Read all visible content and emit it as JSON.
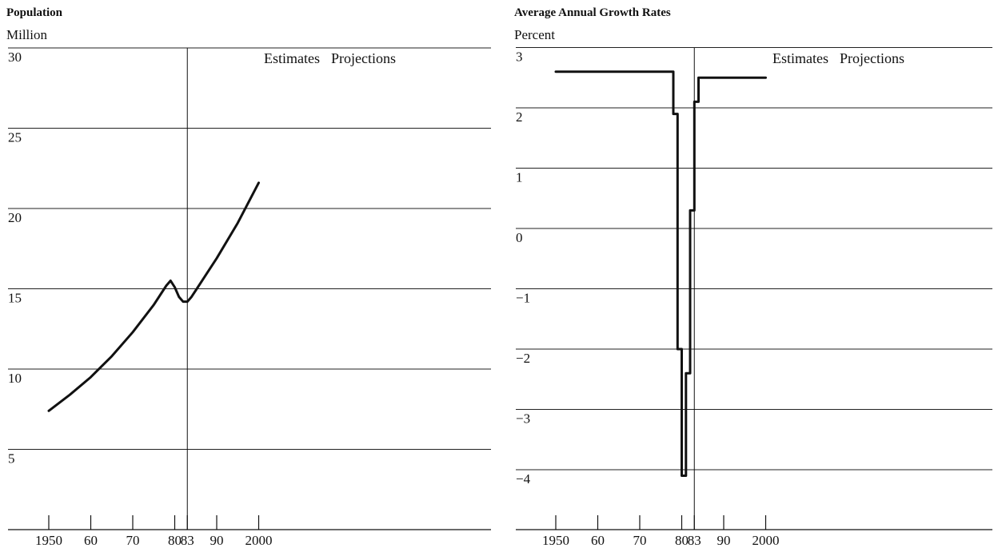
{
  "chart_data": [
    {
      "type": "line",
      "title": "Population",
      "ylabel": "Million",
      "xlabel": "",
      "xlim": [
        1944,
        2004
      ],
      "ylim": [
        0,
        30
      ],
      "yticks": [
        5,
        10,
        15,
        20,
        25,
        30
      ],
      "ytick_labels": [
        "5",
        "10",
        "15",
        "20",
        "25",
        "30"
      ],
      "xticks": [
        1950,
        1960,
        1970,
        1980,
        1983,
        1990,
        2000
      ],
      "xtick_labels": [
        "1950",
        "60",
        "70",
        "80",
        "83",
        "90",
        "2000"
      ],
      "grid": true,
      "divider_x": 1983,
      "annotations": [
        "Estimates",
        "Projections"
      ],
      "series": [
        {
          "x": [
            1950,
            1955,
            1960,
            1965,
            1970,
            1975,
            1978,
            1979,
            1980,
            1981,
            1982,
            1983,
            1984,
            1985,
            1990,
            1995,
            2000
          ],
          "y": [
            7.4,
            8.4,
            9.5,
            10.8,
            12.3,
            14.0,
            15.2,
            15.5,
            15.1,
            14.5,
            14.2,
            14.2,
            14.5,
            14.9,
            16.9,
            19.1,
            21.6
          ]
        }
      ]
    },
    {
      "type": "line",
      "step": true,
      "title": "Average Annual Growth Rates",
      "ylabel": "Percent",
      "xlabel": "",
      "xlim": [
        1944,
        2004
      ],
      "ylim": [
        -5.5,
        3
      ],
      "yticks": [
        -4,
        -3,
        -2,
        -1,
        0,
        1,
        2,
        3
      ],
      "ytick_labels": [
        "−4",
        "−3",
        "−2",
        "−1",
        "0",
        "1",
        "2",
        "3"
      ],
      "xticks": [
        1950,
        1960,
        1970,
        1980,
        1983,
        1990,
        2000
      ],
      "xtick_labels": [
        "1950",
        "60",
        "70",
        "80",
        "83",
        "90",
        "2000"
      ],
      "grid": true,
      "divider_x": 1983,
      "annotations": [
        "Estimates",
        "Projections"
      ],
      "series": [
        {
          "x": [
            1950,
            1978,
            1978,
            1979,
            1979,
            1980,
            1980,
            1981,
            1981,
            1982,
            1982,
            1983,
            1983,
            1984,
            1984,
            2000
          ],
          "y": [
            2.6,
            2.6,
            1.9,
            1.9,
            -2.0,
            -2.0,
            -4.1,
            -4.1,
            -2.4,
            -2.4,
            0.3,
            0.3,
            2.1,
            2.1,
            2.5,
            2.5
          ]
        }
      ]
    }
  ]
}
